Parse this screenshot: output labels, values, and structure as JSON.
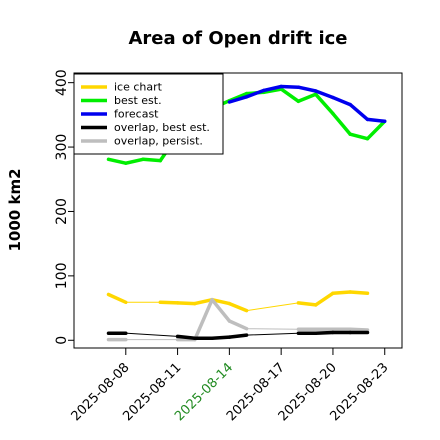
{
  "chart_data": {
    "type": "line",
    "title": "Area of Open drift ice",
    "ylabel": "1000 km2",
    "xlabel": "",
    "ylim": [
      -12,
      415
    ],
    "xlim": [
      "2025-08-05",
      "2025-08-24"
    ],
    "yticks": [
      0,
      100,
      200,
      300,
      400
    ],
    "xticks": [
      "2025-08-08",
      "2025-08-11",
      "2025-08-14",
      "2025-08-17",
      "2025-08-20",
      "2025-08-23"
    ],
    "highlight_tick": "2025-08-14",
    "highlight_color": "#228b22",
    "grid": false,
    "legend_position": "top-left",
    "series": [
      {
        "name": "ice chart",
        "color": "#ffd700",
        "points": [
          [
            "2025-08-07",
            71
          ],
          [
            "2025-08-08",
            59
          ],
          [
            "2025-08-10",
            59
          ],
          [
            "2025-08-11",
            58
          ],
          [
            "2025-08-12",
            57
          ],
          [
            "2025-08-13",
            63
          ],
          [
            "2025-08-14",
            57
          ],
          [
            "2025-08-15",
            46
          ],
          [
            "2025-08-18",
            58
          ],
          [
            "2025-08-19",
            55
          ],
          [
            "2025-08-20",
            73
          ],
          [
            "2025-08-21",
            75
          ],
          [
            "2025-08-22",
            73
          ]
        ]
      },
      {
        "name": "best est.",
        "color": "#00ee00",
        "points": [
          [
            "2025-08-07",
            281
          ],
          [
            "2025-08-08",
            275
          ],
          [
            "2025-08-09",
            281
          ],
          [
            "2025-08-10",
            279
          ],
          [
            "2025-08-11",
            318
          ],
          [
            "2025-08-12",
            340
          ],
          [
            "2025-08-13",
            360
          ],
          [
            "2025-08-14",
            372
          ],
          [
            "2025-08-15",
            383
          ],
          [
            "2025-08-16",
            385
          ],
          [
            "2025-08-17",
            390
          ],
          [
            "2025-08-18",
            371
          ],
          [
            "2025-08-19",
            382
          ],
          [
            "2025-08-20",
            352
          ],
          [
            "2025-08-21",
            320
          ],
          [
            "2025-08-22",
            313
          ],
          [
            "2025-08-23",
            340
          ]
        ]
      },
      {
        "name": "forecast",
        "color": "#0000ee",
        "points": [
          [
            "2025-08-14",
            370
          ],
          [
            "2025-08-15",
            378
          ],
          [
            "2025-08-16",
            388
          ],
          [
            "2025-08-17",
            394
          ],
          [
            "2025-08-18",
            393
          ],
          [
            "2025-08-19",
            387
          ],
          [
            "2025-08-20",
            377
          ],
          [
            "2025-08-21",
            366
          ],
          [
            "2025-08-22",
            343
          ],
          [
            "2025-08-23",
            340
          ]
        ]
      },
      {
        "name": "overlap, best est.",
        "color": "#000000",
        "points": [
          [
            "2025-08-07",
            11
          ],
          [
            "2025-08-08",
            11
          ],
          [
            "2025-08-11",
            6
          ],
          [
            "2025-08-12",
            3
          ],
          [
            "2025-08-13",
            3
          ],
          [
            "2025-08-14",
            5
          ],
          [
            "2025-08-15",
            8
          ],
          [
            "2025-08-18",
            11
          ],
          [
            "2025-08-19",
            11
          ],
          [
            "2025-08-20",
            12
          ],
          [
            "2025-08-21",
            12
          ],
          [
            "2025-08-22",
            12
          ]
        ]
      },
      {
        "name": "overlap, persist.",
        "color": "#bebebe",
        "points": [
          [
            "2025-08-07",
            1
          ],
          [
            "2025-08-08",
            1
          ],
          [
            "2025-08-11",
            1
          ],
          [
            "2025-08-12",
            1
          ],
          [
            "2025-08-13",
            63
          ],
          [
            "2025-08-14",
            30
          ],
          [
            "2025-08-15",
            18
          ],
          [
            "2025-08-18",
            17
          ],
          [
            "2025-08-19",
            17
          ],
          [
            "2025-08-20",
            17
          ],
          [
            "2025-08-21",
            17
          ],
          [
            "2025-08-22",
            16
          ]
        ]
      }
    ]
  }
}
